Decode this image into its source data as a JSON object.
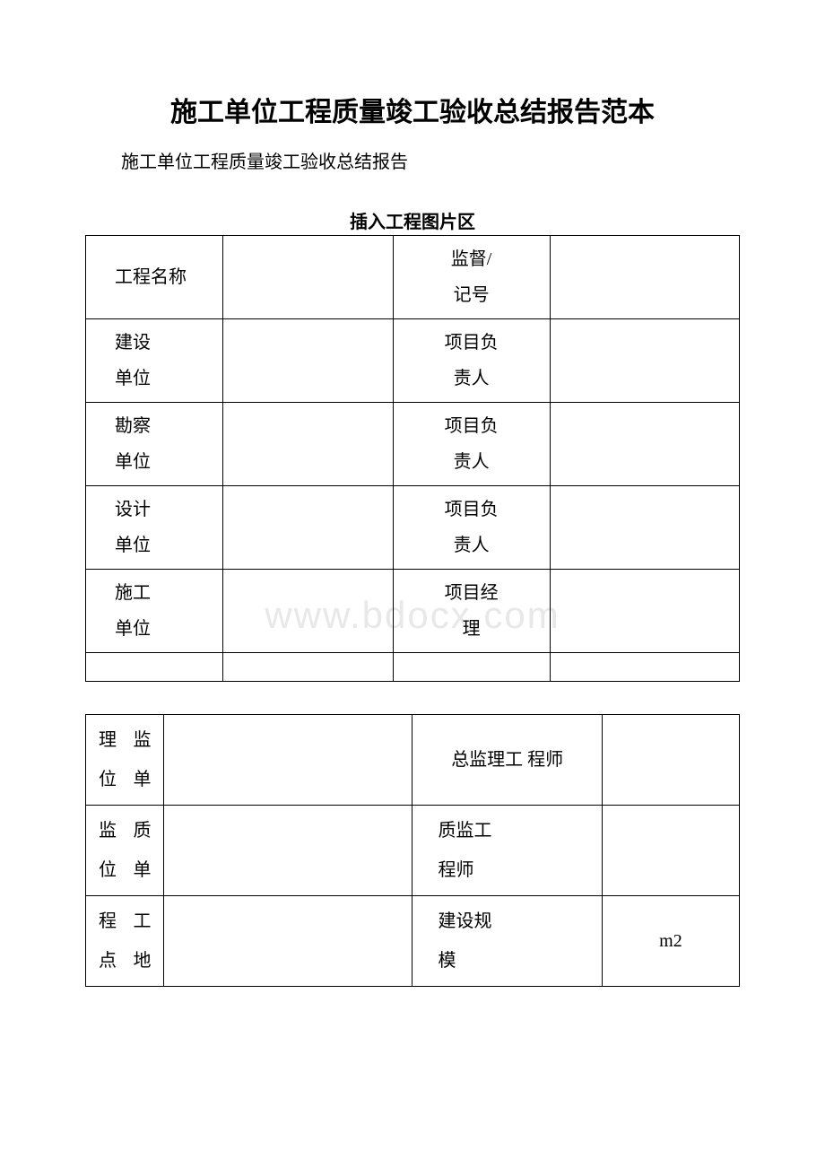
{
  "title": "施工单位工程质量竣工验收总结报告范本",
  "subtitle": "施工单位工程质量竣工验收总结报告",
  "imageAreaLabel": "插入工程图片区",
  "watermark": "www.bdocx.com",
  "table1": {
    "rows": [
      {
        "label": "工程名称",
        "rightLabel": "监督/<br>记号"
      },
      {
        "label": "建设<br>单位",
        "rightLabel": "项目负<br>责人"
      },
      {
        "label": "勘察<br>单位",
        "rightLabel": "项目负<br>责人"
      },
      {
        "label": "设计<br>单位",
        "rightLabel": "项目负<br>责人"
      },
      {
        "label": "施工<br>单位",
        "rightLabel": "项目经<br>理"
      }
    ]
  },
  "table2": {
    "rows": [
      {
        "labelLeft": "理",
        "labelRight": "监",
        "label2Left": "位",
        "label2Right": "单",
        "rightLabel": "总监理工 程师",
        "rightCentered": true
      },
      {
        "labelLeft": "监",
        "labelRight": "质",
        "label2Left": "位",
        "label2Right": "单",
        "rightLabel": "质监工<br>程师",
        "rightCentered": false
      },
      {
        "labelLeft": "程",
        "labelRight": "工",
        "label2Left": "点",
        "label2Right": "地",
        "rightLabel": "建设规<br>模",
        "rightCentered": false,
        "value": "m2"
      }
    ]
  },
  "colors": {
    "text": "#000000",
    "background": "#ffffff",
    "border": "#000000",
    "watermark": "#e8e8e8"
  }
}
